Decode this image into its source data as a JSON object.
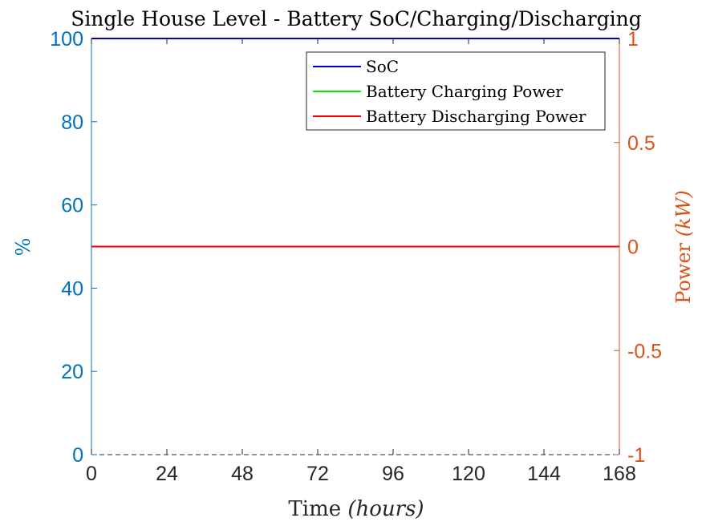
{
  "chart_data": {
    "type": "line",
    "title": "Single House Level - Battery SoC/Charging/Discharging",
    "xlabel": {
      "text": "Time ",
      "unit": "(hours)"
    },
    "ylabel_left": "%",
    "ylabel_right": {
      "text": "Power ",
      "unit": "(kW)"
    },
    "xlim": [
      0,
      168
    ],
    "ylim_left": [
      0,
      100
    ],
    "ylim_right": [
      -1,
      1
    ],
    "xticks": [
      0,
      24,
      48,
      72,
      96,
      120,
      144,
      168
    ],
    "yticks_left": [
      0,
      20,
      40,
      60,
      80,
      100
    ],
    "yticks_right": [
      {
        "value": -1,
        "label": "-1"
      },
      {
        "value": -0.5,
        "label": "-0.5"
      },
      {
        "value": 0,
        "label": "0"
      },
      {
        "value": 0.5,
        "label": "0.5"
      },
      {
        "value": 1,
        "label": "1"
      }
    ],
    "legend_position": "top-right",
    "grid": false,
    "series": [
      {
        "name": "SoC",
        "axis": "left",
        "color": "#0000CC",
        "x": [
          0,
          168
        ],
        "y": [
          100,
          100
        ]
      },
      {
        "name": "Battery Charging Power",
        "axis": "right",
        "color": "#00EE00",
        "x": [
          0,
          168
        ],
        "y": [
          0,
          0
        ]
      },
      {
        "name": "Battery Discharging Power",
        "axis": "right",
        "color": "#EE0000",
        "x": [
          0,
          168
        ],
        "y": [
          0,
          0
        ]
      }
    ],
    "axis_colors": {
      "left": "#0072BD",
      "right": "#D95319",
      "x": "#262626"
    }
  }
}
